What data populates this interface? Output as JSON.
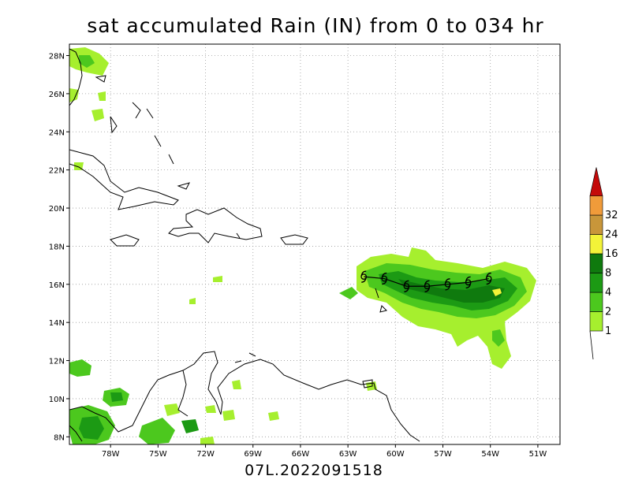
{
  "title": "sat accumulated Rain (IN) from 0 to 034 hr",
  "footer": "07L.2022091518",
  "map": {
    "lon_range": [
      -80.6,
      -49.6
    ],
    "lat_range": [
      7.6,
      28.6
    ],
    "lon_ticks": [
      {
        "value": -78,
        "label": "78W"
      },
      {
        "value": -75,
        "label": "75W"
      },
      {
        "value": -72,
        "label": "72W"
      },
      {
        "value": -69,
        "label": "69W"
      },
      {
        "value": -66,
        "label": "66W"
      },
      {
        "value": -63,
        "label": "63W"
      },
      {
        "value": -60,
        "label": "60W"
      },
      {
        "value": -57,
        "label": "57W"
      },
      {
        "value": -54,
        "label": "54W"
      },
      {
        "value": -51,
        "label": "51W"
      }
    ],
    "lat_ticks": [
      {
        "value": 8,
        "label": "8N"
      },
      {
        "value": 10,
        "label": "10N"
      },
      {
        "value": 12,
        "label": "12N"
      },
      {
        "value": 14,
        "label": "14N"
      },
      {
        "value": 16,
        "label": "16N"
      },
      {
        "value": 18,
        "label": "18N"
      },
      {
        "value": 20,
        "label": "20N"
      },
      {
        "value": 22,
        "label": "22N"
      },
      {
        "value": 24,
        "label": "24N"
      },
      {
        "value": 26,
        "label": "26N"
      },
      {
        "value": 28,
        "label": "28N"
      }
    ],
    "gridlines": true,
    "storm_track": [
      {
        "lon": -62.0,
        "lat": 16.4
      },
      {
        "lon": -60.7,
        "lat": 16.3
      },
      {
        "lon": -59.3,
        "lat": 15.9
      },
      {
        "lon": -58.0,
        "lat": 15.9
      },
      {
        "lon": -56.7,
        "lat": 16.0
      },
      {
        "lon": -55.4,
        "lat": 16.1
      },
      {
        "lon": -54.1,
        "lat": 16.3
      }
    ]
  },
  "colorbar": {
    "levels": [
      "1",
      "2",
      "4",
      "8",
      "16",
      "24",
      "32"
    ],
    "colors": [
      "#a6ef2e",
      "#4cc81e",
      "#1c9a14",
      "#0f7a0e",
      "#f3f338",
      "#c8963a",
      "#f09b3a"
    ],
    "top_color": "#c40a0a"
  }
}
